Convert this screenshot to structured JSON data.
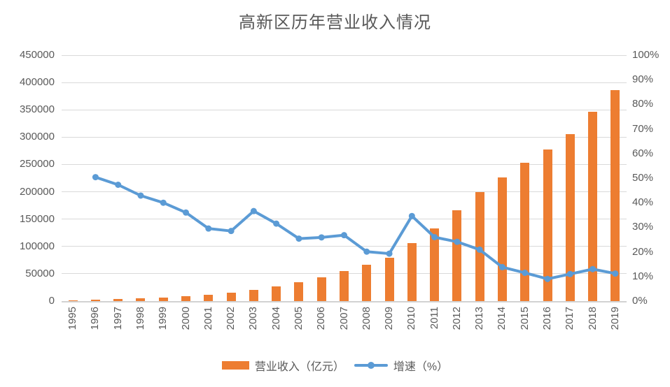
{
  "title": "高新区历年营业收入情况",
  "legend": {
    "revenue_label": "营业收入（亿元）",
    "growth_label": "增速（%）"
  },
  "colors": {
    "bar": "#ED7D31",
    "line": "#5B9BD5",
    "gridline": "#D9D9D9",
    "axis_line": "#D2D2D2",
    "text": "#595959",
    "background": "#FFFFFF"
  },
  "chart_data": {
    "type": "bar",
    "subtype": "combo bar+line, dual value axes",
    "title": "高新区历年营业收入情况",
    "grid": true,
    "legend_position": "bottom",
    "categories": [
      "1995",
      "1996",
      "1997",
      "1998",
      "1999",
      "2000",
      "2001",
      "2002",
      "2003",
      "2004",
      "2005",
      "2006",
      "2007",
      "2008",
      "2009",
      "2010",
      "2011",
      "2012",
      "2013",
      "2014",
      "2015",
      "2016",
      "2017",
      "2018",
      "2019"
    ],
    "series": [
      {
        "name": "营业收入（亿元）",
        "type": "bar",
        "axis": "left",
        "color": "#ED7D31",
        "values": [
          1529,
          2300,
          3388,
          4840,
          6775,
          9209,
          11928,
          15326,
          20939,
          27466,
          34416,
          43320,
          54925,
          65986,
          78707,
          105917,
          133434,
          165572,
          199302,
          226710,
          252749,
          277640,
          305829,
          346801,
          386523
        ]
      },
      {
        "name": "增速（%）",
        "type": "line",
        "axis": "right",
        "color": "#5B9BD5",
        "values": [
          null,
          50.4,
          47.3,
          42.9,
          40.0,
          36.0,
          29.5,
          28.5,
          36.6,
          31.5,
          25.4,
          25.9,
          26.8,
          20.1,
          19.3,
          34.6,
          26.0,
          24.1,
          20.9,
          13.8,
          11.5,
          9.0,
          11.0,
          13.0,
          11.2
        ]
      }
    ],
    "left_axis": {
      "min": 0,
      "max": 450000,
      "step": 50000,
      "tick_labels": [
        "0",
        "50000",
        "100000",
        "150000",
        "200000",
        "250000",
        "300000",
        "350000",
        "400000",
        "450000"
      ]
    },
    "right_axis": {
      "min": 0,
      "max": 100,
      "step": 10,
      "tick_labels": [
        "0%",
        "10%",
        "20%",
        "30%",
        "40%",
        "50%",
        "60%",
        "70%",
        "80%",
        "90%",
        "100%"
      ]
    },
    "xlabel": "",
    "ylabel_left": "营业收入（亿元）",
    "ylabel_right": "增速（%）",
    "x_tick_rotation": -90
  }
}
